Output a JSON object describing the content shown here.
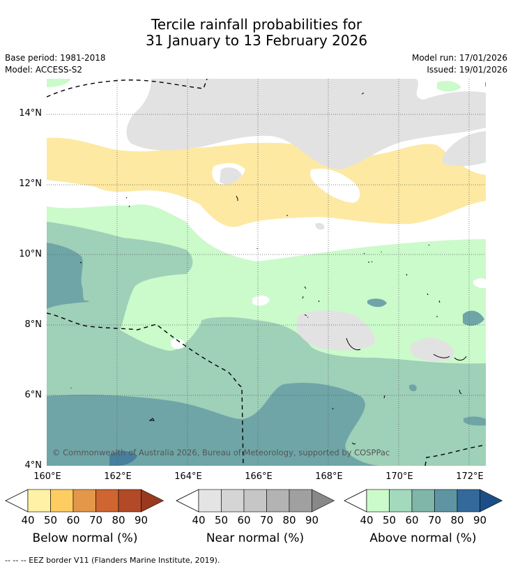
{
  "title": {
    "line1": "Tercile rainfall probabilities for",
    "line2": "31 January to 13 February 2026"
  },
  "meta": {
    "base_period": "Base period: 1981-2018",
    "model": "Model: ACCESS-S2",
    "model_run": "Model run: 17/01/2026",
    "issued": "Issued: 19/01/2026"
  },
  "map": {
    "copyright": "© Commonwealth of Australia 2026, Bureau of Meteorology, supported by COSPPac",
    "lat_labels": [
      "14°N",
      "12°N",
      "10°N",
      "8°N",
      "6°N",
      "4°N"
    ],
    "lon_labels": [
      "160°E",
      "162°E",
      "164°E",
      "166°E",
      "168°E",
      "170°E",
      "172°E"
    ],
    "colors": {
      "ocean_white": "#ffffff",
      "near_normal_grey": "#e2e2e2",
      "below_40": "#fde9a2",
      "above_40": "#cbfacb",
      "above_50": "#9fd0b8",
      "above_60": "#6fa5a7",
      "above_70": "#5c8fa3"
    }
  },
  "colorbars": [
    {
      "id": "below",
      "label": "Below normal (%)",
      "ticks": [
        "40",
        "50",
        "60",
        "70",
        "80",
        "90"
      ],
      "colors": [
        "#fff1a6",
        "#fecd62",
        "#e3974a",
        "#cf6530",
        "#b24a28",
        "#993a1f"
      ]
    },
    {
      "id": "near",
      "label": "Near normal (%)",
      "ticks": [
        "40",
        "50",
        "60",
        "70",
        "80",
        "90"
      ],
      "colors": [
        "#e4e4e4",
        "#d5d5d5",
        "#c6c6c6",
        "#b3b3b3",
        "#a0a0a0",
        "#888888"
      ]
    },
    {
      "id": "above",
      "label": "Above normal (%)",
      "ticks": [
        "40",
        "50",
        "60",
        "70",
        "80",
        "90"
      ],
      "colors": [
        "#cbfacb",
        "#a3d9bc",
        "#80b5a9",
        "#5f95a3",
        "#336a9b",
        "#1b4e87"
      ]
    }
  ],
  "footer": "--  --  -- EEZ border V11 (Flanders Marine Institute, 2019)."
}
